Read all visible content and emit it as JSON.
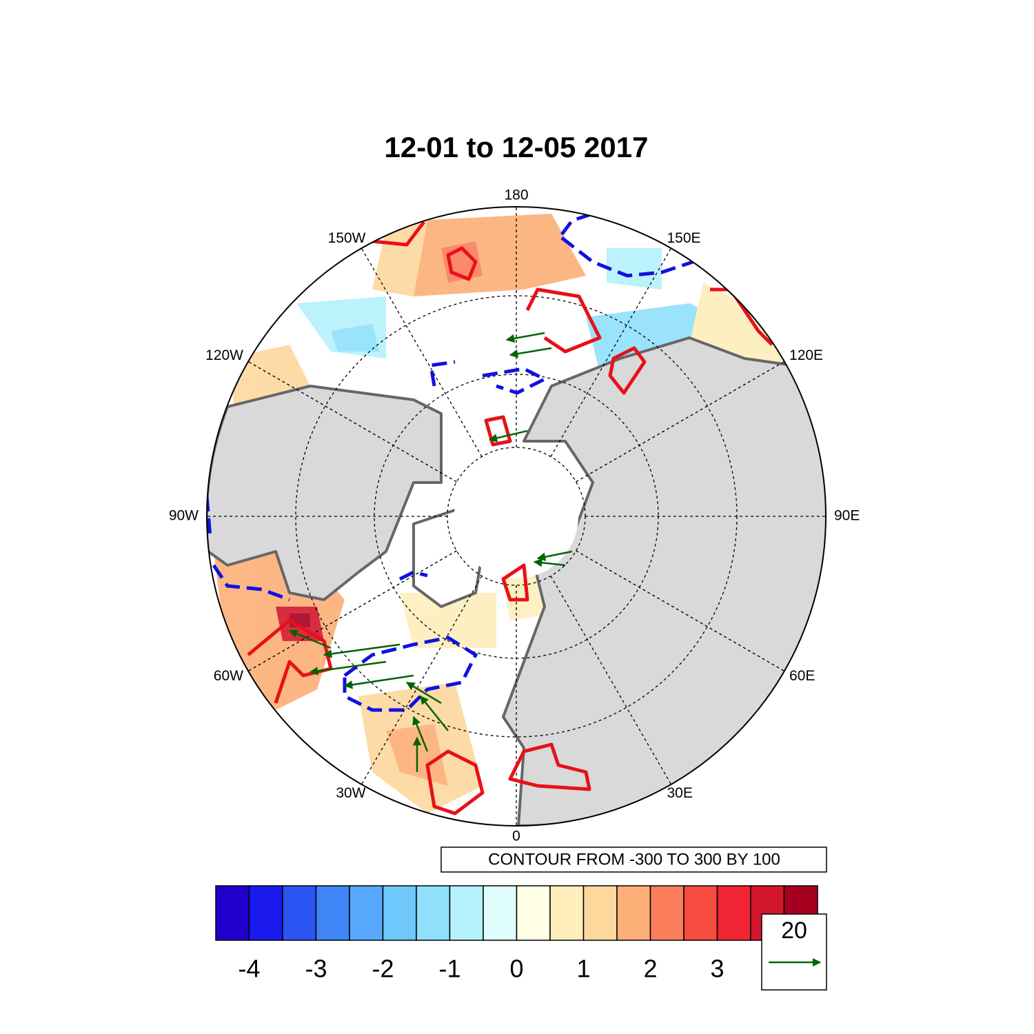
{
  "title": "12-01 to 12-05 2017",
  "longitude_labels": [
    "180",
    "150E",
    "120E",
    "90E",
    "60E",
    "30E",
    "0",
    "30W",
    "60W",
    "90W",
    "120W",
    "150W"
  ],
  "contour_info": "CONTOUR FROM -300 TO 300 BY 100",
  "colorbar": {
    "colors": [
      "#2200cc",
      "#1a1aee",
      "#2b55f2",
      "#3f85f7",
      "#56a9fc",
      "#6ec8fb",
      "#8fe0fb",
      "#b4f1fc",
      "#e0fefe",
      "#fffee6",
      "#fdeebb",
      "#fdd89d",
      "#fcaf77",
      "#fb7e5a",
      "#f74c40",
      "#f02433",
      "#d4162c",
      "#a5001f"
    ],
    "lim": [
      -4.5,
      4.5
    ],
    "ticks": [
      -4,
      -3,
      -2,
      -1,
      0,
      1,
      2,
      3
    ]
  },
  "reference_vector": {
    "label": "20",
    "color": "#006400"
  }
}
